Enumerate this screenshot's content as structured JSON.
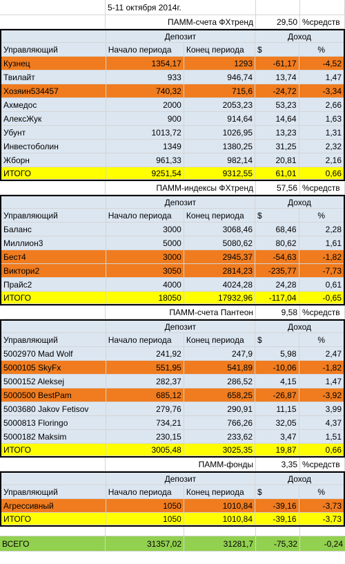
{
  "header": {
    "date_range": "5-11 октября 2014г."
  },
  "labels": {
    "manager": "Управляющий",
    "deposit": "Депозит",
    "income": "Доход",
    "start": "Начало периода",
    "end": "Конец периода",
    "dollar": "$",
    "percent": "%",
    "share_suffix": "%средств"
  },
  "sections": [
    {
      "title": "ПАММ-счета ФХтренд",
      "share": "29,50",
      "rows": [
        {
          "name": "Кузнец",
          "start": "1354,17",
          "end": "1293",
          "usd": "-61,17",
          "pct": "-4,52",
          "color": "orange"
        },
        {
          "name": "Твилайт",
          "start": "933",
          "end": "946,74",
          "usd": "13,74",
          "pct": "1,47",
          "color": "blue"
        },
        {
          "name": "Хозяин534457",
          "start": "740,32",
          "end": "715,6",
          "usd": "-24,72",
          "pct": "-3,34",
          "color": "orange"
        },
        {
          "name": "Ахмедос",
          "start": "2000",
          "end": "2053,23",
          "usd": "53,23",
          "pct": "2,66",
          "color": "blue"
        },
        {
          "name": "АлексЖук",
          "start": "900",
          "end": "914,64",
          "usd": "14,64",
          "pct": "1,63",
          "color": "blue"
        },
        {
          "name": "Убунт",
          "start": "1013,72",
          "end": "1026,95",
          "usd": "13,23",
          "pct": "1,31",
          "color": "blue"
        },
        {
          "name": "Инвестоболин",
          "start": "1349",
          "end": "1380,25",
          "usd": "31,25",
          "pct": "2,32",
          "color": "blue"
        },
        {
          "name": "Жборн",
          "start": "961,33",
          "end": "982,14",
          "usd": "20,81",
          "pct": "2,16",
          "color": "blue"
        }
      ],
      "total": {
        "name": "ИТОГО",
        "start": "9251,54",
        "end": "9312,55",
        "usd": "61,01",
        "pct": "0,66"
      }
    },
    {
      "title": "ПАММ-индексы ФХтренд",
      "share": "57,56",
      "rows": [
        {
          "name": "Баланс",
          "start": "3000",
          "end": "3068,46",
          "usd": "68,46",
          "pct": "2,28",
          "color": "blue"
        },
        {
          "name": "Миллион3",
          "start": "5000",
          "end": "5080,62",
          "usd": "80,62",
          "pct": "1,61",
          "color": "blue"
        },
        {
          "name": "Бест4",
          "start": "3000",
          "end": "2945,37",
          "usd": "-54,63",
          "pct": "-1,82",
          "color": "orange"
        },
        {
          "name": "Виктори2",
          "start": "3050",
          "end": "2814,23",
          "usd": "-235,77",
          "pct": "-7,73",
          "color": "orange"
        },
        {
          "name": "Прайс2",
          "start": "4000",
          "end": "4024,28",
          "usd": "24,28",
          "pct": "0,61",
          "color": "blue"
        }
      ],
      "total": {
        "name": "ИТОГО",
        "start": "18050",
        "end": "17932,96",
        "usd": "-117,04",
        "pct": "-0,65"
      }
    },
    {
      "title": "ПАММ-счета Пантеон",
      "share": "9,58",
      "rows": [
        {
          "name": "5002970 Mad Wolf",
          "start": "241,92",
          "end": "247,9",
          "usd": "5,98",
          "pct": "2,47",
          "color": "blue"
        },
        {
          "name": "5000105 SkyFx",
          "start": "551,95",
          "end": "541,89",
          "usd": "-10,06",
          "pct": "-1,82",
          "color": "orange"
        },
        {
          "name": "5000152 Aleksej",
          "start": "282,37",
          "end": "286,52",
          "usd": "4,15",
          "pct": "1,47",
          "color": "blue"
        },
        {
          "name": "5000500 BestPam",
          "start": "685,12",
          "end": "658,25",
          "usd": "-26,87",
          "pct": "-3,92",
          "color": "orange"
        },
        {
          "name": "5003680 Jakov Fetisov",
          "start": "279,76",
          "end": "290,91",
          "usd": "11,15",
          "pct": "3,99",
          "color": "blue"
        },
        {
          "name": "5000813 Floringo",
          "start": "734,21",
          "end": "766,26",
          "usd": "32,05",
          "pct": "4,37",
          "color": "blue"
        },
        {
          "name": "5000182 Maksim",
          "start": "230,15",
          "end": "233,62",
          "usd": "3,47",
          "pct": "1,51",
          "color": "blue"
        }
      ],
      "total": {
        "name": "ИТОГО",
        "start": "3005,48",
        "end": "3025,35",
        "usd": "19,87",
        "pct": "0,66"
      }
    },
    {
      "title": "ПАММ-фонды",
      "share": "3,35",
      "rows": [
        {
          "name": "Агрессивный",
          "start": "1050",
          "end": "1010,84",
          "usd": "-39,16",
          "pct": "-3,73",
          "color": "orange"
        }
      ],
      "total": {
        "name": "ИТОГО",
        "start": "1050",
        "end": "1010,84",
        "usd": "-39,16",
        "pct": "-3,73"
      }
    }
  ],
  "grand_total": {
    "name": "ВСЕГО",
    "start": "31357,02",
    "end": "31281,7",
    "usd": "-75,32",
    "pct": "-0,24"
  }
}
